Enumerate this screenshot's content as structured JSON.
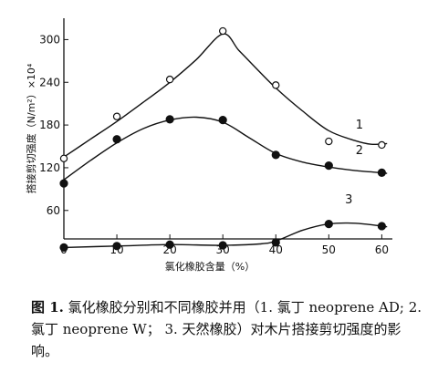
{
  "chart_data": {
    "type": "line",
    "xlabel": "氯化橡胶含量（%）",
    "ylabel": "搭接剪切强度（N/m²）×10⁴",
    "x_ticks": [
      "0",
      "10",
      "20",
      "30",
      "40",
      "50",
      "60"
    ],
    "y_ticks": [
      "60",
      "120",
      "180",
      "240",
      "300"
    ],
    "xlim": [
      0,
      62
    ],
    "ylim": [
      20,
      330
    ],
    "grid": false,
    "series": [
      {
        "name": "1",
        "marker": "open-circle",
        "points": [
          [
            0,
            133
          ],
          [
            10,
            192
          ],
          [
            20,
            244
          ],
          [
            30,
            312
          ],
          [
            40,
            236
          ],
          [
            50,
            157
          ],
          [
            60,
            152
          ]
        ],
        "curve": [
          [
            0,
            135
          ],
          [
            5,
            160
          ],
          [
            10,
            185
          ],
          [
            15,
            212
          ],
          [
            20,
            240
          ],
          [
            25,
            272
          ],
          [
            30,
            308
          ],
          [
            33,
            285
          ],
          [
            36,
            262
          ],
          [
            40,
            232
          ],
          [
            45,
            200
          ],
          [
            50,
            172
          ],
          [
            55,
            158
          ],
          [
            58,
            153
          ],
          [
            61,
            154
          ]
        ]
      },
      {
        "name": "2",
        "marker": "filled-circle",
        "points": [
          [
            0,
            98
          ],
          [
            10,
            160
          ],
          [
            20,
            188
          ],
          [
            30,
            187
          ],
          [
            40,
            138
          ],
          [
            50,
            123
          ],
          [
            60,
            113
          ]
        ],
        "curve": [
          [
            0,
            103
          ],
          [
            5,
            130
          ],
          [
            10,
            155
          ],
          [
            15,
            175
          ],
          [
            20,
            187
          ],
          [
            25,
            191
          ],
          [
            30,
            184
          ],
          [
            35,
            162
          ],
          [
            40,
            140
          ],
          [
            45,
            128
          ],
          [
            50,
            121
          ],
          [
            55,
            116
          ],
          [
            60,
            113
          ],
          [
            61,
            112
          ]
        ]
      },
      {
        "name": "3",
        "marker": "filled-circle",
        "points": [
          [
            0,
            8
          ],
          [
            10,
            10
          ],
          [
            20,
            12
          ],
          [
            30,
            11
          ],
          [
            40,
            15
          ],
          [
            50,
            41
          ],
          [
            60,
            38
          ]
        ],
        "curve": [
          [
            0,
            8
          ],
          [
            10,
            10
          ],
          [
            20,
            12
          ],
          [
            30,
            11
          ],
          [
            37,
            13
          ],
          [
            40,
            17
          ],
          [
            45,
            32
          ],
          [
            50,
            41
          ],
          [
            55,
            42
          ],
          [
            60,
            38
          ],
          [
            61,
            37
          ]
        ]
      }
    ]
  },
  "caption": {
    "figure_label": "图 1.",
    "text": " 氯化橡胶分别和不同橡胶并用（1. 氯丁 neoprene AD; 2. 氯丁 neoprene W； 3. 天然橡胶）对木片搭接剪切强度的影响。"
  }
}
